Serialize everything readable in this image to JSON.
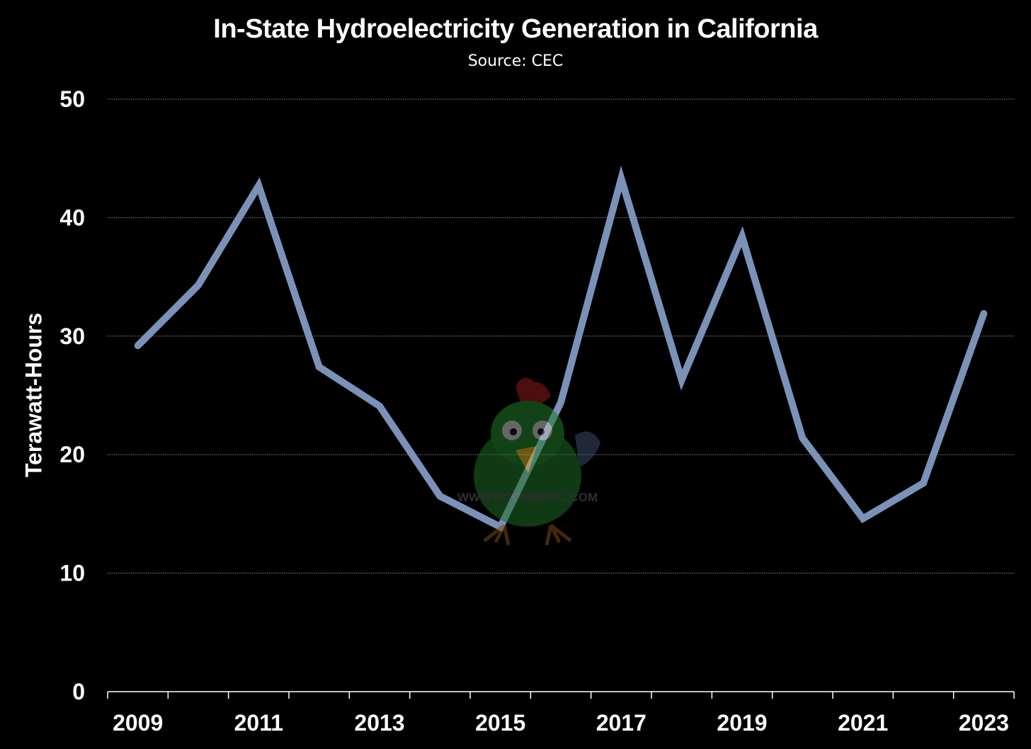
{
  "chart_data": {
    "type": "line",
    "title": "In-State Hydroelectricity Generation in California",
    "subtitle": "Source: CEC",
    "xlabel": "",
    "ylabel": "Terawatt-Hours",
    "ylim": [
      0,
      50
    ],
    "yticks": [
      0,
      10,
      20,
      30,
      40,
      50
    ],
    "xtick_labels": [
      "2009",
      "2011",
      "2013",
      "2015",
      "2017",
      "2019",
      "2021",
      "2023"
    ],
    "grid": true,
    "series": [
      {
        "color": "#7b92b8",
        "x": [
          2009,
          2010,
          2011,
          2012,
          2013,
          2014,
          2015,
          2016,
          2017,
          2018,
          2019,
          2020,
          2021,
          2022,
          2023
        ],
        "values": [
          29.2,
          34.3,
          42.7,
          27.4,
          24.1,
          16.5,
          13.9,
          24.4,
          43.3,
          26.3,
          38.4,
          21.4,
          14.6,
          17.6,
          31.9
        ]
      }
    ],
    "watermark": "WWW.DOOMBERG.COM"
  }
}
